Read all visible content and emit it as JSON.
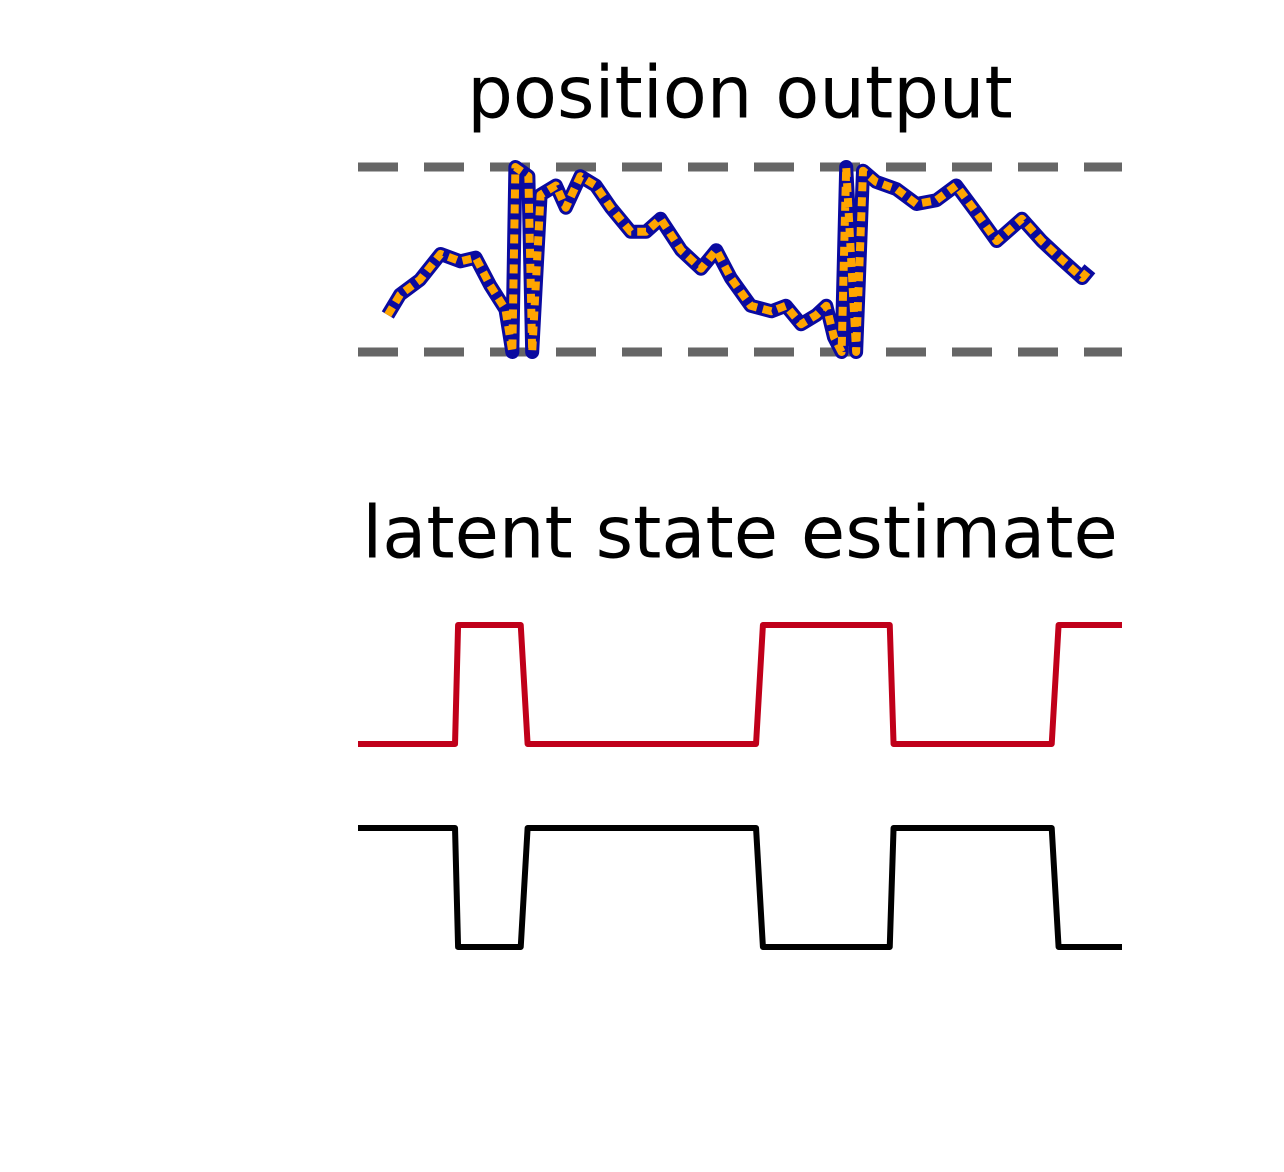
{
  "chart_data": [
    {
      "type": "line",
      "title": "position output",
      "x": [
        3.9,
        5.5,
        8.1,
        10.8,
        13.4,
        15.4,
        17.3,
        19.3,
        20.2,
        20.6,
        22.3,
        22.8,
        23.9,
        25.9,
        27.2,
        29.1,
        31.1,
        33.1,
        35.7,
        37.7,
        39.6,
        42.3,
        44.9,
        46.9,
        48.8,
        51.4,
        54.1,
        56.0,
        58.0,
        60.0,
        61.3,
        62.3,
        63.3,
        63.9,
        65.2,
        66.1,
        67.8,
        70.5,
        73.1,
        75.7,
        78.3,
        81.0,
        83.6,
        86.9,
        89.5,
        92.1,
        94.8,
        95.8
      ],
      "series": [
        {
          "color": "#0a0aa0",
          "values": [
            0.2,
            0.31,
            0.39,
            0.53,
            0.49,
            0.51,
            0.36,
            0.23,
            0.0,
            1.0,
            0.95,
            0.0,
            0.85,
            0.9,
            0.78,
            0.95,
            0.9,
            0.78,
            0.65,
            0.65,
            0.72,
            0.55,
            0.45,
            0.55,
            0.4,
            0.25,
            0.22,
            0.25,
            0.15,
            0.2,
            0.25,
            0.08,
            0.0,
            1.0,
            0.0,
            0.98,
            0.92,
            0.88,
            0.8,
            0.82,
            0.9,
            0.75,
            0.6,
            0.72,
            0.6,
            0.5,
            0.4,
            0.45
          ]
        },
        {
          "color": "#ffa500",
          "dashed": true,
          "values": [
            0.2,
            0.31,
            0.39,
            0.53,
            0.49,
            0.51,
            0.36,
            0.23,
            0.0,
            1.0,
            0.95,
            0.0,
            0.85,
            0.9,
            0.78,
            0.95,
            0.9,
            0.78,
            0.65,
            0.65,
            0.72,
            0.55,
            0.45,
            0.55,
            0.4,
            0.25,
            0.22,
            0.25,
            0.15,
            0.2,
            0.25,
            0.08,
            0.0,
            1.0,
            0.0,
            0.98,
            0.92,
            0.88,
            0.8,
            0.82,
            0.9,
            0.75,
            0.6,
            0.72,
            0.6,
            0.5,
            0.4,
            0.45
          ]
        }
      ],
      "xlim": [
        0,
        100
      ],
      "ylim": [
        0,
        1
      ],
      "hlines": [
        0,
        1
      ],
      "hline_color": "#666666"
    },
    {
      "type": "step",
      "title": "latent state estimate",
      "x": [
        0,
        12.7,
        13.1,
        21.3,
        22.2,
        52.1,
        53.0,
        69.6,
        70.1,
        90.8,
        91.7,
        100
      ],
      "series": [
        {
          "color": "#c0001a",
          "values": [
            0,
            0,
            1,
            1,
            0,
            0,
            1,
            1,
            0,
            0,
            1,
            1
          ]
        },
        {
          "color": "#000000",
          "values": [
            1,
            1,
            0,
            0,
            1,
            1,
            0,
            0,
            1,
            1,
            0,
            0
          ]
        }
      ],
      "xlim": [
        0,
        100
      ],
      "ylim": [
        0,
        1
      ]
    }
  ]
}
